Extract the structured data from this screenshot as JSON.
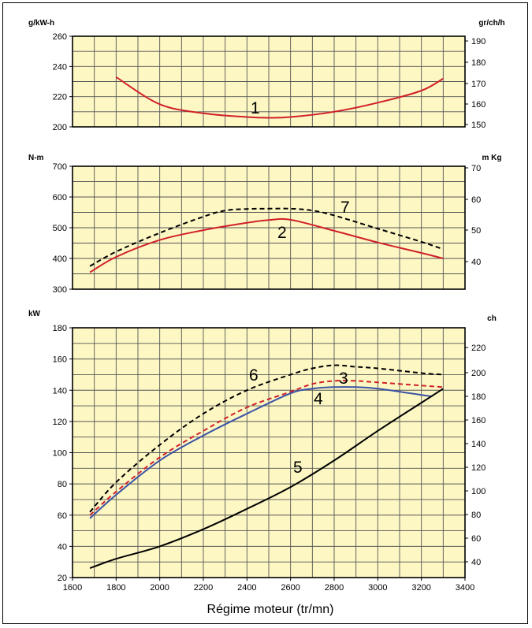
{
  "chart_data": [
    {
      "type": "line",
      "left_axis": {
        "unit": "g/kW-h",
        "ticks": [
          200,
          220,
          240,
          260
        ],
        "range": [
          200,
          260
        ]
      },
      "right_axis": {
        "unit": "gr/ch/h",
        "ticks": [
          150,
          160,
          170,
          180,
          190
        ]
      },
      "series": [
        {
          "id": "1",
          "style": "solid",
          "color": "#d0202a",
          "x": [
            1800,
            2000,
            2200,
            2400,
            2500,
            2600,
            2800,
            3000,
            3200,
            3300
          ],
          "y": [
            233,
            215,
            209,
            206.5,
            206,
            206.5,
            210,
            216,
            224,
            232
          ]
        }
      ]
    },
    {
      "type": "line",
      "left_axis": {
        "unit": "N-m",
        "ticks": [
          300,
          400,
          500,
          600,
          700
        ],
        "range": [
          300,
          700
        ]
      },
      "right_axis": {
        "unit": "m Kg",
        "ticks": [
          40,
          50,
          60,
          70
        ]
      },
      "series": [
        {
          "id": "2",
          "style": "solid",
          "color": "#d0202a",
          "x": [
            1680,
            1800,
            2000,
            2200,
            2400,
            2500,
            2600,
            2800,
            3000,
            3200,
            3300
          ],
          "y": [
            355,
            405,
            460,
            492,
            516,
            525,
            526,
            490,
            452,
            418,
            400
          ]
        },
        {
          "id": "7",
          "style": "dashed",
          "color": "#000000",
          "x": [
            1680,
            1800,
            2000,
            2200,
            2300,
            2400,
            2500,
            2600,
            2700,
            2800,
            3000,
            3200,
            3300
          ],
          "y": [
            375,
            422,
            483,
            536,
            556,
            561,
            562,
            562,
            556,
            540,
            497,
            454,
            430
          ]
        }
      ]
    },
    {
      "type": "line",
      "left_axis": {
        "unit": "kW",
        "ticks": [
          20,
          40,
          60,
          80,
          100,
          120,
          140,
          160,
          180
        ],
        "range": [
          20,
          180
        ]
      },
      "right_axis": {
        "unit": "ch",
        "ticks": [
          40,
          60,
          80,
          100,
          120,
          140,
          160,
          180,
          200,
          220
        ]
      },
      "x_axis": {
        "title": "Régime moteur (tr/mn)",
        "ticks": [
          1600,
          1800,
          2000,
          2200,
          2400,
          2600,
          2800,
          3000,
          3200,
          3400
        ],
        "range": [
          1600,
          3400
        ]
      },
      "series": [
        {
          "id": "3",
          "style": "dashed",
          "color": "#d0202a",
          "x": [
            1680,
            1800,
            2000,
            2200,
            2400,
            2600,
            2700,
            2800,
            2900,
            3000,
            3200,
            3300
          ],
          "y": [
            60,
            75,
            97,
            114,
            129,
            139,
            144,
            146,
            146,
            145,
            143,
            142
          ]
        },
        {
          "id": "4",
          "style": "solid",
          "color": "#3a53a4",
          "x": [
            1680,
            1800,
            2000,
            2200,
            2400,
            2600,
            2700,
            2800,
            2900,
            3000,
            3200,
            3250
          ],
          "y": [
            58,
            73,
            95,
            111,
            125,
            138,
            141,
            142,
            142,
            141,
            137,
            136
          ]
        },
        {
          "id": "5",
          "style": "solid",
          "color": "#000000",
          "x": [
            1680,
            1800,
            2000,
            2200,
            2400,
            2600,
            2800,
            3000,
            3200,
            3300
          ],
          "y": [
            26,
            32,
            40,
            51,
            64,
            78,
            95,
            114,
            132,
            141
          ]
        },
        {
          "id": "6",
          "style": "dashed",
          "color": "#000000",
          "x": [
            1680,
            1800,
            2000,
            2200,
            2400,
            2600,
            2700,
            2800,
            2900,
            3000,
            3200,
            3300
          ],
          "y": [
            62,
            81,
            105,
            125,
            140,
            150,
            154,
            156,
            155,
            154,
            151,
            150
          ]
        }
      ]
    }
  ]
}
